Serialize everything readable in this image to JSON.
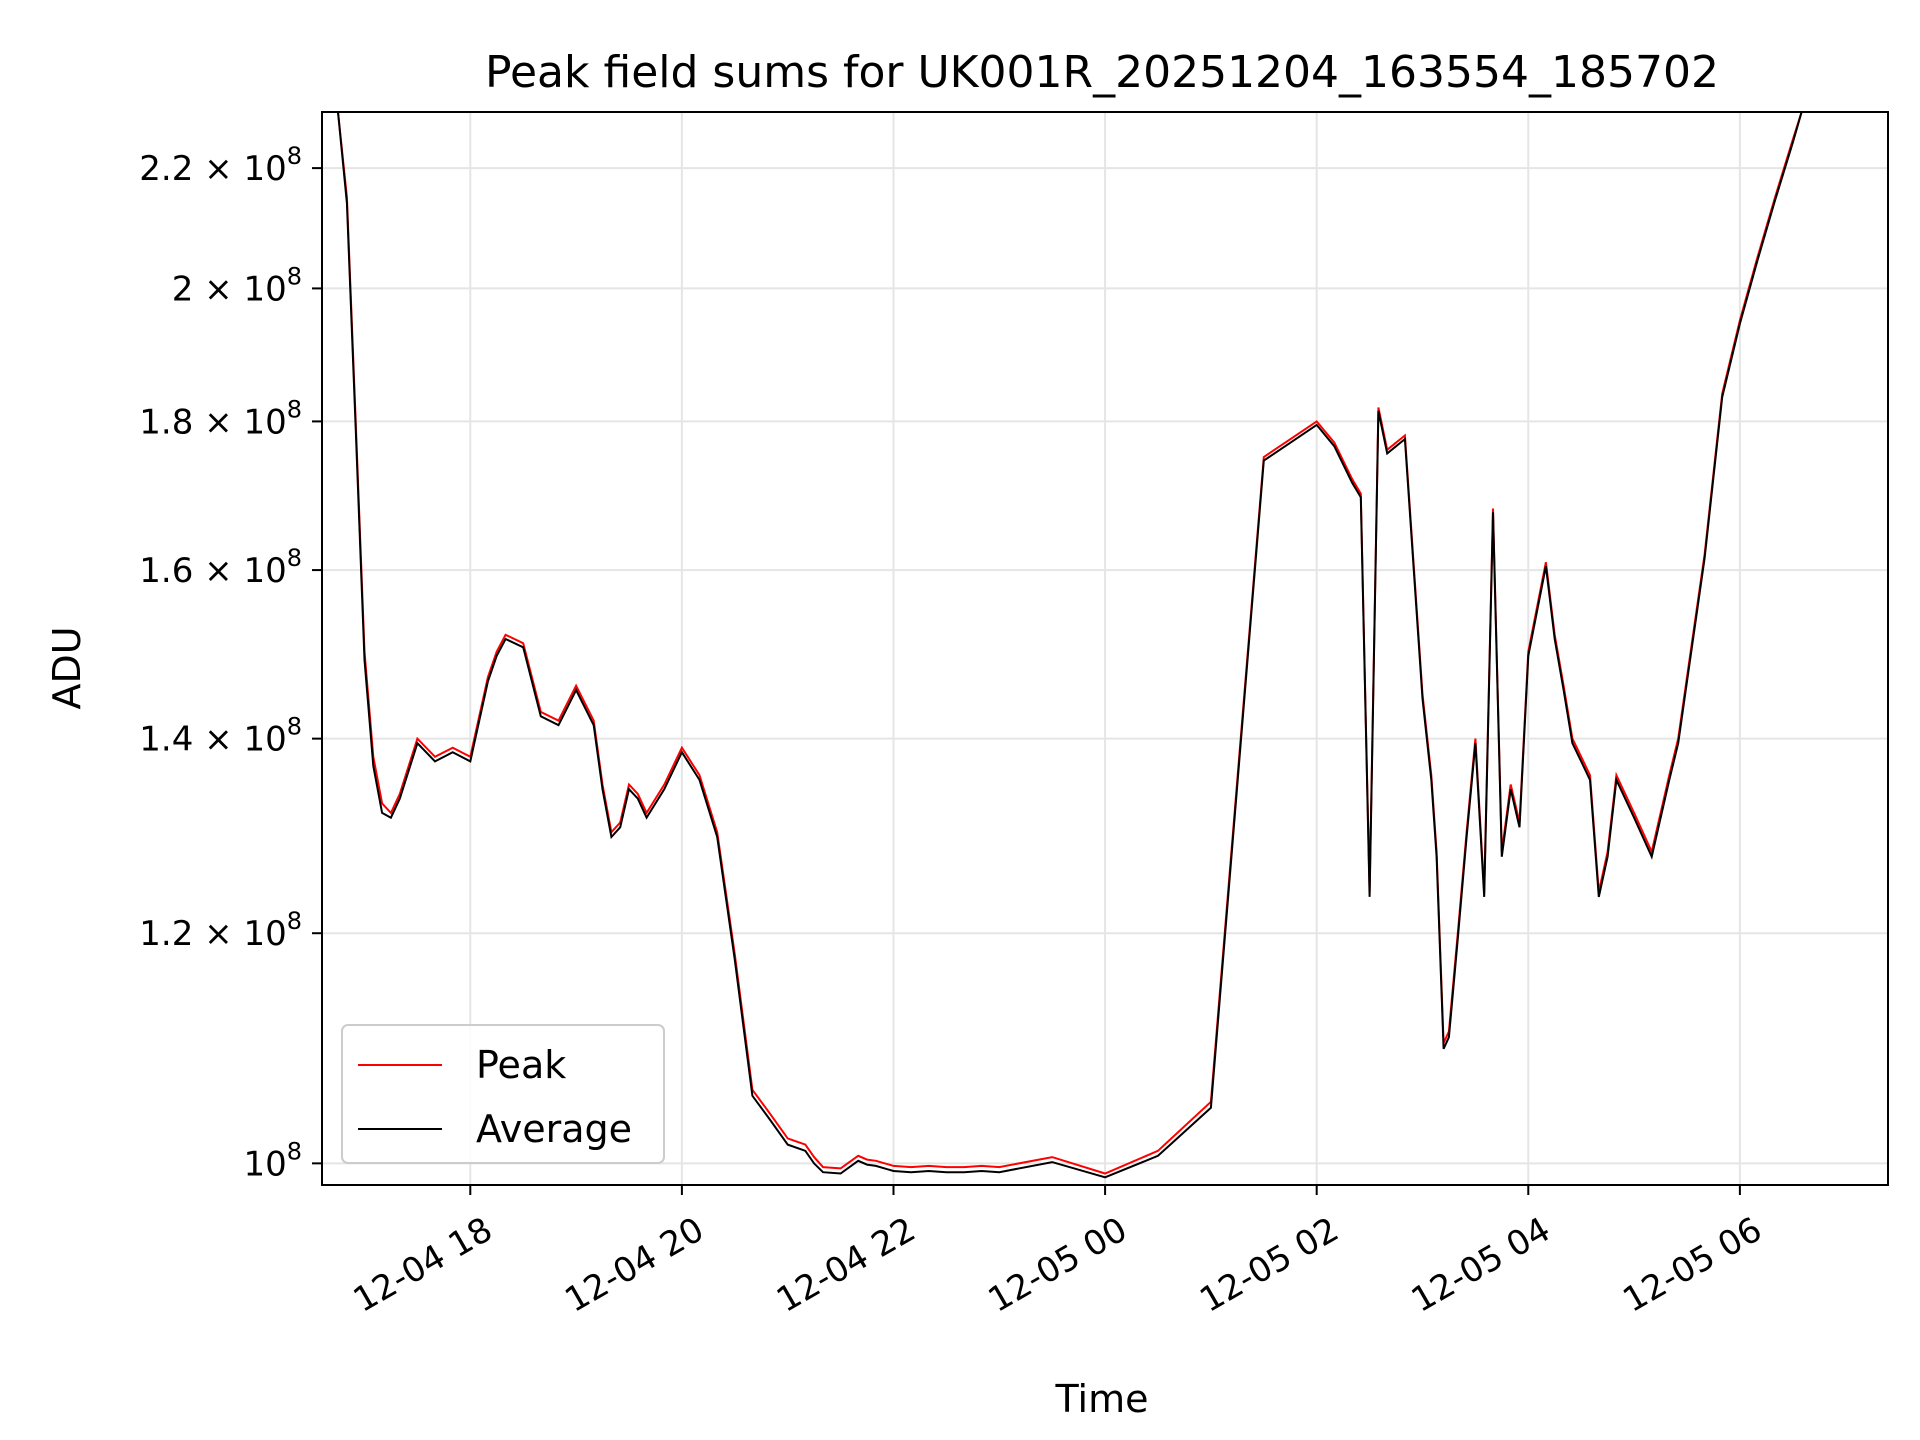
{
  "chart_data": {
    "type": "line",
    "title": "Peak field sums for UK001R_20251204_163554_185702",
    "xlabel": "Time",
    "ylabel": "ADU",
    "x_axis": "datetime",
    "xlim": [
      "2025-12-04 16:35:54",
      "2025-12-05 07:24:00"
    ],
    "ylim": [
      98300000,
      230000000
    ],
    "yscale": "log",
    "grid": true,
    "legend_position": "lower-left",
    "x_ticks": [
      {
        "value": "2025-12-04 18:00",
        "label": "12-04 18"
      },
      {
        "value": "2025-12-04 20:00",
        "label": "12-04 20"
      },
      {
        "value": "2025-12-04 22:00",
        "label": "12-04 22"
      },
      {
        "value": "2025-12-05 00:00",
        "label": "12-05 00"
      },
      {
        "value": "2025-12-05 02:00",
        "label": "12-05 02"
      },
      {
        "value": "2025-12-05 04:00",
        "label": "12-05 04"
      },
      {
        "value": "2025-12-05 06:00",
        "label": "12-05 06"
      }
    ],
    "y_ticks": [
      {
        "value": 100000000,
        "mant": "10",
        "exp": "8",
        "times": ""
      },
      {
        "value": 120000000,
        "mant": "1.2",
        "exp": "8",
        "times": "×"
      },
      {
        "value": 140000000,
        "mant": "1.4",
        "exp": "8",
        "times": "×"
      },
      {
        "value": 160000000,
        "mant": "1.6",
        "exp": "8",
        "times": "×"
      },
      {
        "value": 180000000,
        "mant": "1.8",
        "exp": "8",
        "times": "×"
      },
      {
        "value": 200000000,
        "mant": "2",
        "exp": "8",
        "times": "×"
      },
      {
        "value": 220000000,
        "mant": "2.2",
        "exp": "8",
        "times": "×"
      }
    ],
    "series": [
      {
        "name": "Peak",
        "color": "#ff0000",
        "x": [
          "2025-12-04 16:45",
          "2025-12-04 16:50",
          "2025-12-04 16:55",
          "2025-12-04 17:00",
          "2025-12-04 17:05",
          "2025-12-04 17:10",
          "2025-12-04 17:15",
          "2025-12-04 17:20",
          "2025-12-04 17:30",
          "2025-12-04 17:40",
          "2025-12-04 17:50",
          "2025-12-04 18:00",
          "2025-12-04 18:10",
          "2025-12-04 18:15",
          "2025-12-04 18:20",
          "2025-12-04 18:30",
          "2025-12-04 18:40",
          "2025-12-04 18:50",
          "2025-12-04 19:00",
          "2025-12-04 19:10",
          "2025-12-04 19:15",
          "2025-12-04 19:20",
          "2025-12-04 19:25",
          "2025-12-04 19:30",
          "2025-12-04 19:35",
          "2025-12-04 19:40",
          "2025-12-04 19:50",
          "2025-12-04 20:00",
          "2025-12-04 20:10",
          "2025-12-04 20:20",
          "2025-12-04 20:30",
          "2025-12-04 20:40",
          "2025-12-04 20:50",
          "2025-12-04 21:00",
          "2025-12-04 21:10",
          "2025-12-04 21:15",
          "2025-12-04 21:20",
          "2025-12-04 21:30",
          "2025-12-04 21:40",
          "2025-12-04 21:45",
          "2025-12-04 21:50",
          "2025-12-04 22:00",
          "2025-12-04 22:10",
          "2025-12-04 22:20",
          "2025-12-04 22:30",
          "2025-12-04 22:40",
          "2025-12-04 22:50",
          "2025-12-04 23:00",
          "2025-12-04 23:30",
          "2025-12-05 00:00",
          "2025-12-05 00:30",
          "2025-12-05 01:00",
          "2025-12-05 01:30",
          "2025-12-05 02:00",
          "2025-12-05 02:10",
          "2025-12-05 02:20",
          "2025-12-05 02:25",
          "2025-12-05 02:30",
          "2025-12-05 02:35",
          "2025-12-05 02:40",
          "2025-12-05 02:50",
          "2025-12-05 03:00",
          "2025-12-05 03:05",
          "2025-12-05 03:08",
          "2025-12-05 03:12",
          "2025-12-05 03:15",
          "2025-12-05 03:20",
          "2025-12-05 03:25",
          "2025-12-05 03:30",
          "2025-12-05 03:35",
          "2025-12-05 03:40",
          "2025-12-05 03:45",
          "2025-12-05 03:50",
          "2025-12-05 03:55",
          "2025-12-05 04:00",
          "2025-12-05 04:10",
          "2025-12-05 04:15",
          "2025-12-05 04:20",
          "2025-12-05 04:25",
          "2025-12-05 04:30",
          "2025-12-05 04:35",
          "2025-12-05 04:40",
          "2025-12-05 04:45",
          "2025-12-05 04:50",
          "2025-12-05 05:00",
          "2025-12-05 05:10",
          "2025-12-05 05:20",
          "2025-12-05 05:25",
          "2025-12-05 05:30",
          "2025-12-05 05:40",
          "2025-12-05 05:50",
          "2025-12-05 06:00",
          "2025-12-05 06:10",
          "2025-12-05 06:20",
          "2025-12-05 06:30",
          "2025-12-05 06:35",
          "2025-12-05 06:40",
          "2025-12-05 06:50",
          "2025-12-05 07:00",
          "2025-12-05 07:10",
          "2025-12-05 07:20"
        ],
        "values": [
          230000000,
          215000000,
          180000000,
          150000000,
          138000000,
          133000000,
          132000000,
          134000000,
          140000000,
          138000000,
          139000000,
          138000000,
          147000000,
          150000000,
          152000000,
          151000000,
          143000000,
          142000000,
          146000000,
          142000000,
          135000000,
          130000000,
          131000000,
          135000000,
          134000000,
          132000000,
          135000000,
          139000000,
          136000000,
          130000000,
          118000000,
          106000000,
          104000000,
          102000000,
          101500000,
          100500000,
          99700000,
          99600000,
          100600000,
          100300000,
          100200000,
          99800000,
          99700000,
          99800000,
          99700000,
          99700000,
          99800000,
          99700000,
          100500000,
          99200000,
          101000000,
          105000000,
          175000000,
          180000000,
          177000000,
          172000000,
          170000000,
          124000000,
          182000000,
          176000000,
          178000000,
          145000000,
          136000000,
          128000000,
          110000000,
          111000000,
          120000000,
          130000000,
          140000000,
          124000000,
          168000000,
          128000000,
          135000000,
          131000000,
          150000000,
          161000000,
          152000000,
          146000000,
          140000000,
          138000000,
          136000000,
          124000000,
          128000000,
          136000000,
          132000000,
          128000000,
          136000000,
          140000000,
          147000000,
          162000000,
          184000000,
          195000000,
          205000000,
          215000000,
          225000000,
          230000000,
          230000000,
          230000000,
          230000000,
          230000000,
          230000000
        ]
      },
      {
        "name": "Average",
        "color": "#000000",
        "x": [
          "2025-12-04 16:45",
          "2025-12-04 16:50",
          "2025-12-04 16:55",
          "2025-12-04 17:00",
          "2025-12-04 17:05",
          "2025-12-04 17:10",
          "2025-12-04 17:15",
          "2025-12-04 17:20",
          "2025-12-04 17:30",
          "2025-12-04 17:40",
          "2025-12-04 17:50",
          "2025-12-04 18:00",
          "2025-12-04 18:10",
          "2025-12-04 18:15",
          "2025-12-04 18:20",
          "2025-12-04 18:30",
          "2025-12-04 18:40",
          "2025-12-04 18:50",
          "2025-12-04 19:00",
          "2025-12-04 19:10",
          "2025-12-04 19:15",
          "2025-12-04 19:20",
          "2025-12-04 19:25",
          "2025-12-04 19:30",
          "2025-12-04 19:35",
          "2025-12-04 19:40",
          "2025-12-04 19:50",
          "2025-12-04 20:00",
          "2025-12-04 20:10",
          "2025-12-04 20:20",
          "2025-12-04 20:30",
          "2025-12-04 20:40",
          "2025-12-04 20:50",
          "2025-12-04 21:00",
          "2025-12-04 21:10",
          "2025-12-04 21:15",
          "2025-12-04 21:20",
          "2025-12-04 21:30",
          "2025-12-04 21:40",
          "2025-12-04 21:45",
          "2025-12-04 21:50",
          "2025-12-04 22:00",
          "2025-12-04 22:10",
          "2025-12-04 22:20",
          "2025-12-04 22:30",
          "2025-12-04 22:40",
          "2025-12-04 22:50",
          "2025-12-04 23:00",
          "2025-12-04 23:30",
          "2025-12-05 00:00",
          "2025-12-05 00:30",
          "2025-12-05 01:00",
          "2025-12-05 01:30",
          "2025-12-05 02:00",
          "2025-12-05 02:10",
          "2025-12-05 02:20",
          "2025-12-05 02:25",
          "2025-12-05 02:30",
          "2025-12-05 02:35",
          "2025-12-05 02:40",
          "2025-12-05 02:50",
          "2025-12-05 03:00",
          "2025-12-05 03:05",
          "2025-12-05 03:08",
          "2025-12-05 03:12",
          "2025-12-05 03:15",
          "2025-12-05 03:20",
          "2025-12-05 03:25",
          "2025-12-05 03:30",
          "2025-12-05 03:35",
          "2025-12-05 03:40",
          "2025-12-05 03:45",
          "2025-12-05 03:50",
          "2025-12-05 03:55",
          "2025-12-05 04:00",
          "2025-12-05 04:10",
          "2025-12-05 04:15",
          "2025-12-05 04:20",
          "2025-12-05 04:25",
          "2025-12-05 04:30",
          "2025-12-05 04:35",
          "2025-12-05 04:40",
          "2025-12-05 04:45",
          "2025-12-05 04:50",
          "2025-12-05 05:00",
          "2025-12-05 05:10",
          "2025-12-05 05:20",
          "2025-12-05 05:25",
          "2025-12-05 05:30",
          "2025-12-05 05:40",
          "2025-12-05 05:50",
          "2025-12-05 06:00",
          "2025-12-05 06:10",
          "2025-12-05 06:20",
          "2025-12-05 06:30",
          "2025-12-05 06:35",
          "2025-12-05 06:40",
          "2025-12-05 06:50",
          "2025-12-05 07:00",
          "2025-12-05 07:10",
          "2025-12-05 07:20"
        ],
        "values": [
          230000000,
          214000000,
          179000000,
          149000000,
          137000000,
          132000000,
          131500000,
          133500000,
          139500000,
          137500000,
          138500000,
          137500000,
          146500000,
          149500000,
          151500000,
          150500000,
          142500000,
          141500000,
          145500000,
          141500000,
          134500000,
          129500000,
          130500000,
          134500000,
          133500000,
          131500000,
          134500000,
          138500000,
          135500000,
          129500000,
          117500000,
          105500000,
          103500000,
          101500000,
          101000000,
          100000000,
          99300000,
          99200000,
          100200000,
          99900000,
          99800000,
          99400000,
          99300000,
          99400000,
          99300000,
          99300000,
          99400000,
          99300000,
          100100000,
          98900000,
          100600000,
          104500000,
          174500000,
          179500000,
          176500000,
          171500000,
          169500000,
          123500000,
          181500000,
          175500000,
          177500000,
          144500000,
          135500000,
          127500000,
          109500000,
          110500000,
          119500000,
          129500000,
          139500000,
          123500000,
          167500000,
          127500000,
          134500000,
          130500000,
          149500000,
          160500000,
          151500000,
          145500000,
          139500000,
          137500000,
          135500000,
          123500000,
          127500000,
          135500000,
          131500000,
          127500000,
          135500000,
          139500000,
          146500000,
          161500000,
          183500000,
          194500000,
          204500000,
          214500000,
          224500000,
          230000000,
          230000000,
          230000000,
          230000000,
          230000000,
          230000000
        ]
      }
    ]
  }
}
